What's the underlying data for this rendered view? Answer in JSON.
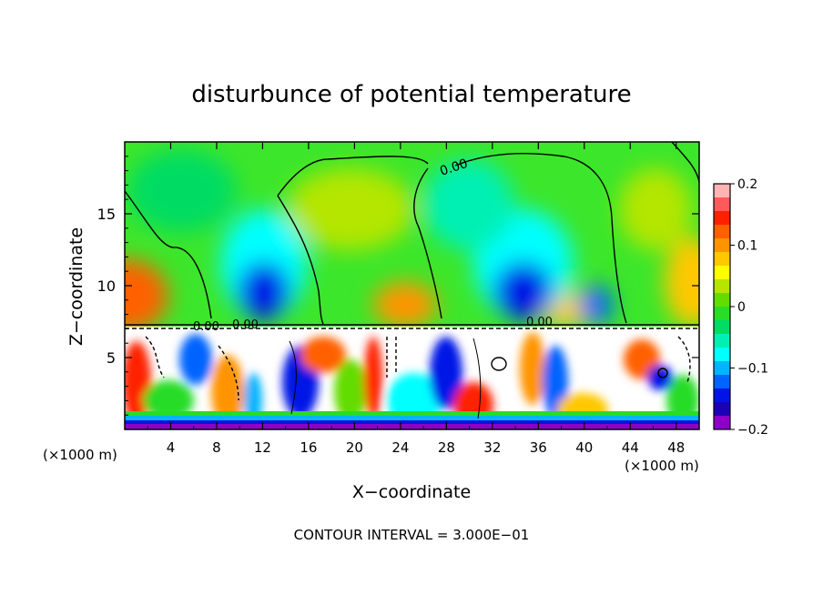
{
  "chart_data": {
    "type": "heatmap",
    "title": "disturbunce of potential temperature",
    "xlabel": "X−coordinate",
    "ylabel": "Z−coordinate",
    "x_unit_label": "(×1000 m)",
    "z_unit_label": "(×1000 m)",
    "xlim": [
      0,
      50
    ],
    "ylim": [
      0,
      20
    ],
    "x_ticks": [
      4,
      8,
      12,
      16,
      20,
      24,
      28,
      32,
      36,
      40,
      44,
      48
    ],
    "y_ticks": [
      5,
      10,
      15
    ],
    "colorbar": {
      "range": [
        -0.2,
        0.2
      ],
      "ticks": [
        "0.2",
        "0.1",
        "0",
        "−0.1",
        "−0.2"
      ],
      "colors": [
        "#ffb4b4",
        "#ff5a5a",
        "#ff2000",
        "#ff6000",
        "#ff9400",
        "#ffc800",
        "#ffff00",
        "#b4e600",
        "#64dc00",
        "#28dc28",
        "#00dc64",
        "#00f0b4",
        "#00ffff",
        "#00b4ff",
        "#0064ff",
        "#0014e6",
        "#1e00b4",
        "#8c00c8"
      ]
    },
    "contour_labels": [
      "0.00",
      "0.00",
      "0.00",
      "0.00"
    ],
    "contour_interval_text": "CONTOUR INTERVAL = 3.000E−01"
  }
}
